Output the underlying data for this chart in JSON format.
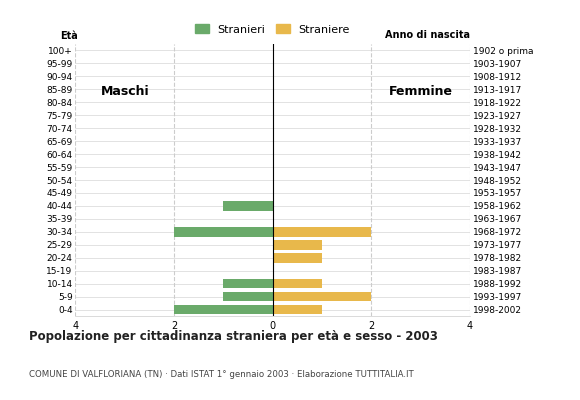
{
  "age_groups": [
    "0-4",
    "5-9",
    "10-14",
    "15-19",
    "20-24",
    "25-29",
    "30-34",
    "35-39",
    "40-44",
    "45-49",
    "50-54",
    "55-59",
    "60-64",
    "65-69",
    "70-74",
    "75-79",
    "80-84",
    "85-89",
    "90-94",
    "95-99",
    "100+"
  ],
  "birth_years": [
    "1998-2002",
    "1993-1997",
    "1988-1992",
    "1983-1987",
    "1978-1982",
    "1973-1977",
    "1968-1972",
    "1963-1967",
    "1958-1962",
    "1953-1957",
    "1948-1952",
    "1943-1947",
    "1938-1942",
    "1933-1937",
    "1928-1932",
    "1923-1927",
    "1918-1922",
    "1913-1917",
    "1908-1912",
    "1903-1907",
    "1902 o prima"
  ],
  "males": [
    2,
    1,
    1,
    0,
    0,
    0,
    2,
    0,
    1,
    0,
    0,
    0,
    0,
    0,
    0,
    0,
    0,
    0,
    0,
    0,
    0
  ],
  "females": [
    1,
    2,
    1,
    0,
    1,
    1,
    2,
    0,
    0,
    0,
    0,
    0,
    0,
    0,
    0,
    0,
    0,
    0,
    0,
    0,
    0
  ],
  "male_color": "#6aaa6a",
  "female_color": "#e8b84b",
  "title": "Popolazione per cittadinanza straniera per età e sesso - 2003",
  "subtitle": "COMUNE DI VALFLORIANA (TN) · Dati ISTAT 1° gennaio 2003 · Elaborazione TUTTITALIA.IT",
  "legend_male": "Stranieri",
  "legend_female": "Straniere",
  "label_eta": "Età",
  "label_anno": "Anno di nascita",
  "label_maschi": "Maschi",
  "label_femmine": "Femmine",
  "xlim": 4,
  "background_color": "#ffffff",
  "grid_color": "#cccccc"
}
